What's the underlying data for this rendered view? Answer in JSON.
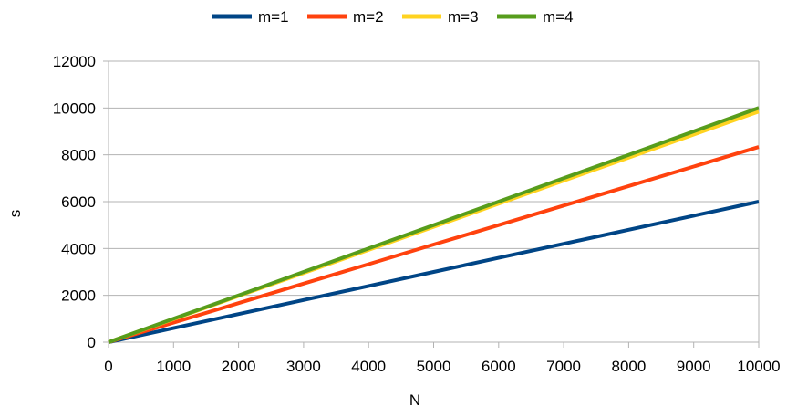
{
  "chart_data": {
    "type": "line",
    "title": "",
    "xlabel": "N",
    "ylabel": "s",
    "xlim": [
      0,
      10000
    ],
    "ylim": [
      0,
      12000
    ],
    "x_ticks": [
      "0",
      "1000",
      "2000",
      "3000",
      "4000",
      "5000",
      "6000",
      "7000",
      "8000",
      "9000",
      "10000"
    ],
    "y_ticks": [
      "0",
      "2000",
      "4000",
      "6000",
      "8000",
      "10000",
      "12000"
    ],
    "grid": true,
    "legend_position": "top",
    "x": [
      0,
      1000,
      2000,
      3000,
      4000,
      5000,
      6000,
      7000,
      8000,
      9000,
      10000
    ],
    "series": [
      {
        "name": "m=1",
        "color": "#004586",
        "values": [
          0,
          600,
          1200,
          1800,
          2400,
          3000,
          3600,
          4200,
          4800,
          5400,
          6000
        ]
      },
      {
        "name": "m=2",
        "color": "#ff420e",
        "values": [
          0,
          833,
          1667,
          2500,
          3333,
          4167,
          5000,
          5833,
          6667,
          7500,
          8333
        ]
      },
      {
        "name": "m=3",
        "color": "#ffd320",
        "values": [
          0,
          985,
          1970,
          2955,
          3940,
          4925,
          5910,
          6895,
          7880,
          8865,
          9850
        ]
      },
      {
        "name": "m=4",
        "color": "#579d1c",
        "values": [
          0,
          1000,
          2000,
          3000,
          4000,
          5000,
          6000,
          7000,
          8000,
          9000,
          10000
        ]
      }
    ]
  }
}
